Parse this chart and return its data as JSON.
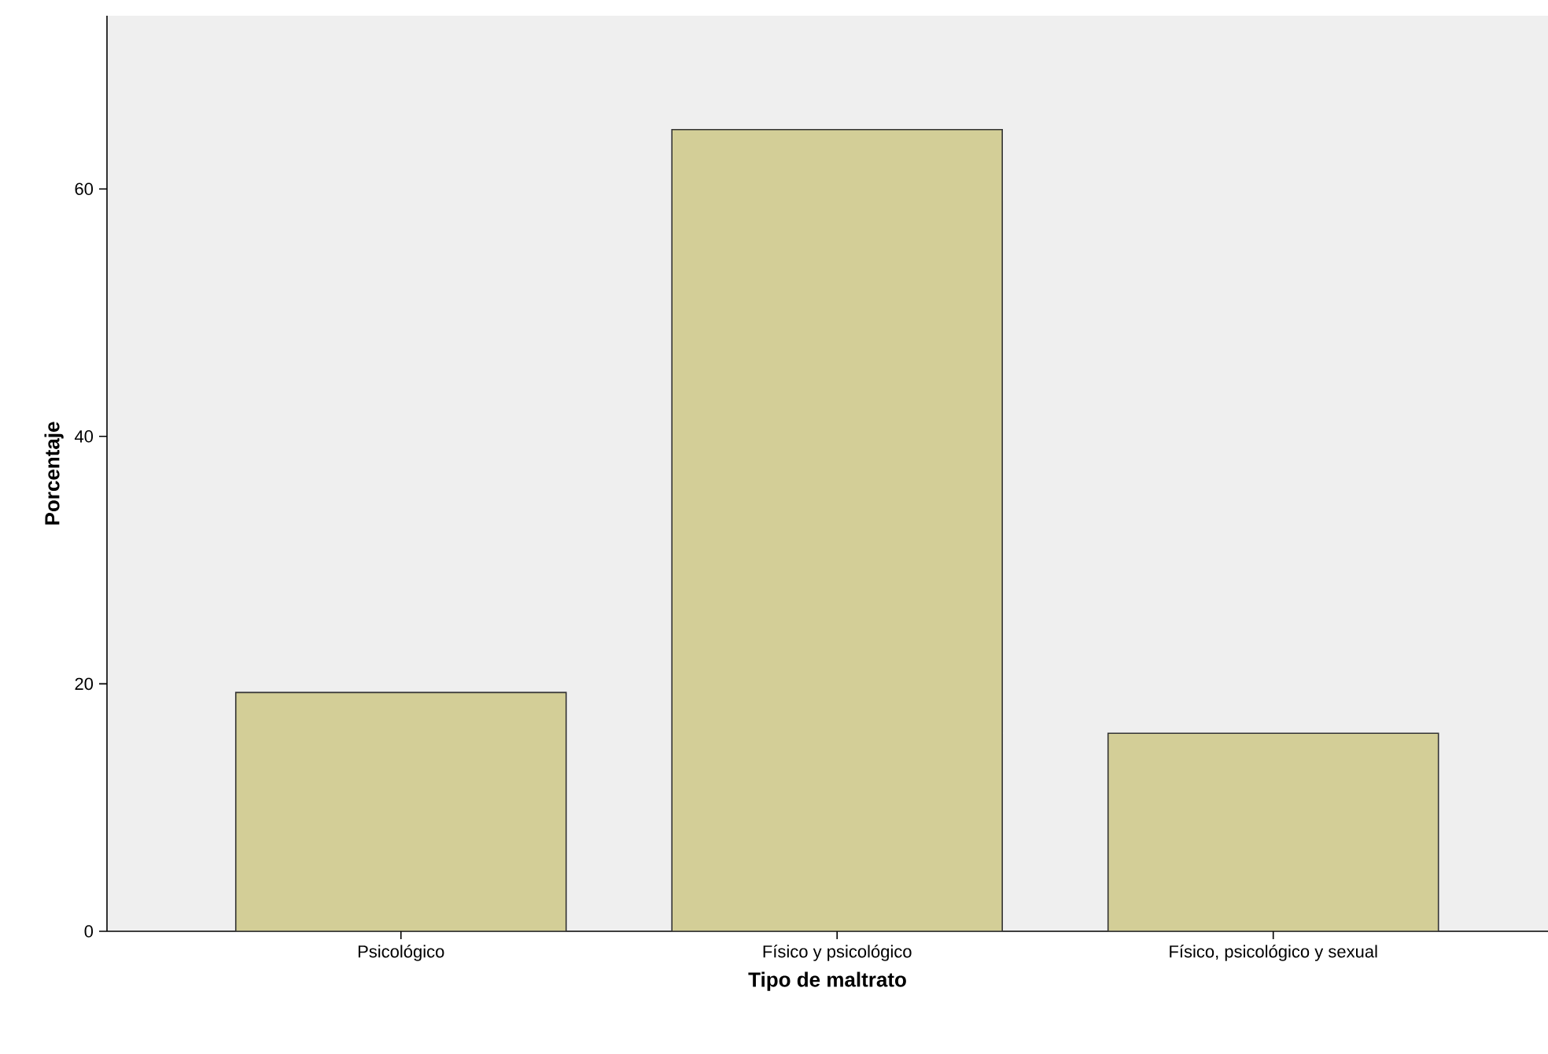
{
  "chart_data": {
    "type": "bar",
    "xlabel": "Tipo de maltrato",
    "ylabel": "Porcentaje",
    "categories": [
      "Psicológico",
      "Físico y psicológico",
      "Físico, psicológico y sexual"
    ],
    "values": [
      19.3,
      64.8,
      16.0
    ],
    "color": "#d3ce97",
    "ylim": [
      0,
      74
    ],
    "yticks": [
      0,
      20,
      40,
      60
    ]
  }
}
